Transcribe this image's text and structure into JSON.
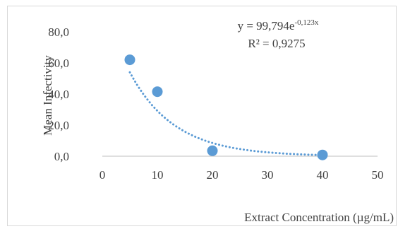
{
  "chart_data": {
    "type": "scatter",
    "xlabel": "Extract Concentration (µg/mL)",
    "ylabel": "Mean Infectivity",
    "xlim": [
      0,
      50
    ],
    "ylim": [
      0,
      80
    ],
    "x_ticks": [
      0,
      10,
      20,
      30,
      40,
      50
    ],
    "y_ticks": [
      0,
      20,
      40,
      60,
      80
    ],
    "x_tick_labels": [
      "0",
      "10",
      "20",
      "30",
      "40",
      "50"
    ],
    "y_tick_labels": [
      "0,0",
      "20,0",
      "40,0",
      "60,0",
      "80,0"
    ],
    "grid": false,
    "series": [
      {
        "x": [
          5,
          10,
          20,
          40
        ],
        "y": [
          62.0,
          41.5,
          3.5,
          0.8
        ],
        "color": "#5b9bd5"
      }
    ],
    "trendline": {
      "type": "exponential",
      "a": 99.794,
      "b": -0.123,
      "x_range": [
        5,
        40
      ],
      "color": "#5b9bd5",
      "style": "dotted",
      "equation_prefix": "y = 99,794e",
      "equation_exponent": "-0,123x",
      "r_squared_label": "R² = 0,9275"
    }
  }
}
